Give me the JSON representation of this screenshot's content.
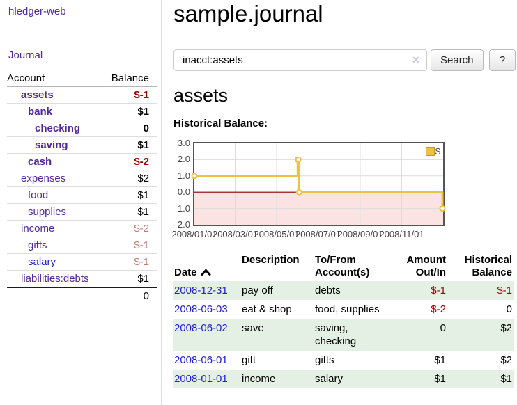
{
  "app": {
    "brand": "hledger-web",
    "nav_journal": "Journal"
  },
  "header": {
    "title": "sample.journal"
  },
  "search": {
    "value": "inacct:assets",
    "placeholder": "",
    "clear_icon": "✕",
    "button_label": "Search",
    "help_label": "?"
  },
  "sidebar": {
    "accounts_header": {
      "account": "Account",
      "balance": "Balance"
    },
    "accounts": [
      {
        "name": "assets",
        "level": 1,
        "bold": true,
        "blue": false,
        "balance": "$-1",
        "neg": "strong"
      },
      {
        "name": "bank",
        "level": 2,
        "bold": true,
        "blue": false,
        "balance": "$1",
        "neg": ""
      },
      {
        "name": "checking",
        "level": 3,
        "bold": true,
        "blue": false,
        "balance": "0",
        "neg": ""
      },
      {
        "name": "saving",
        "level": 3,
        "bold": true,
        "blue": false,
        "balance": "$1",
        "neg": ""
      },
      {
        "name": "cash",
        "level": 2,
        "bold": true,
        "blue": false,
        "balance": "$-2",
        "neg": "strong"
      },
      {
        "name": "expenses",
        "level": 1,
        "bold": false,
        "blue": false,
        "balance": "$2",
        "neg": ""
      },
      {
        "name": "food",
        "level": 2,
        "bold": false,
        "blue": false,
        "balance": "$1",
        "neg": ""
      },
      {
        "name": "supplies",
        "level": 2,
        "bold": false,
        "blue": false,
        "balance": "$1",
        "neg": ""
      },
      {
        "name": "income",
        "level": 1,
        "bold": false,
        "blue": false,
        "balance": "$-2",
        "neg": "soft"
      },
      {
        "name": "gifts",
        "level": 2,
        "bold": false,
        "blue": false,
        "balance": "$-1",
        "neg": "soft"
      },
      {
        "name": "salary",
        "level": 2,
        "bold": false,
        "blue": true,
        "balance": "$-1",
        "neg": "soft"
      },
      {
        "name": "liabilities:debts",
        "level": 1,
        "bold": false,
        "blue": false,
        "balance": "$1",
        "neg": ""
      }
    ],
    "total": "0"
  },
  "account_page": {
    "title": "assets",
    "chart_label": "Historical Balance:"
  },
  "chart_data": {
    "type": "line",
    "step": true,
    "title": "Historical Balance:",
    "series": [
      {
        "name": "$",
        "color": "#edc240",
        "points": [
          [
            "2008-01-01",
            1
          ],
          [
            "2008-06-01",
            2
          ],
          [
            "2008-06-02",
            2
          ],
          [
            "2008-06-03",
            0
          ],
          [
            "2008-12-31",
            -1
          ]
        ]
      }
    ],
    "x_range": [
      "2008-01-01",
      "2009-01-01"
    ],
    "ylim": [
      -2,
      3
    ],
    "x_ticks": [
      {
        "label": "2008/01/01",
        "date": "2008-01-01"
      },
      {
        "label": "2008/03/01",
        "date": "2008-03-01"
      },
      {
        "label": "2008/05/01",
        "date": "2008-05-01"
      },
      {
        "label": "2008/07/01",
        "date": "2008-07-01"
      },
      {
        "label": "2008/09/01",
        "date": "2008-09-01"
      },
      {
        "label": "2008/11/01",
        "date": "2008-11-01"
      }
    ],
    "y_ticks": [
      {
        "label": "3.0",
        "value": 3
      },
      {
        "label": "2.0",
        "value": 2
      },
      {
        "label": "1.0",
        "value": 1
      },
      {
        "label": "0.0",
        "value": 0
      },
      {
        "label": "-1.0",
        "value": -1
      },
      {
        "label": "-2.0",
        "value": -2
      }
    ],
    "legend": {
      "label": "$",
      "position": "top-right"
    },
    "grid": true,
    "zero_line_color": "#8b0000",
    "negative_region_color": "#fbe3e3"
  },
  "register": {
    "columns": [
      "Date",
      "Description",
      "To/From\nAccount(s)",
      "Amount\nOut/In",
      "Historical\nBalance"
    ],
    "sort": {
      "column": "Date",
      "direction": "asc"
    },
    "rows": [
      {
        "date": "2008-12-31",
        "description": "pay off",
        "accounts": "debts",
        "amount": "$-1",
        "amount_neg": true,
        "balance": "$-1",
        "balance_neg": true
      },
      {
        "date": "2008-06-03",
        "description": "eat & shop",
        "accounts": "food, supplies",
        "amount": "$-2",
        "amount_neg": true,
        "balance": "0",
        "balance_neg": false
      },
      {
        "date": "2008-06-02",
        "description": "save",
        "accounts": "saving,\nchecking",
        "amount": "0",
        "amount_neg": false,
        "balance": "$2",
        "balance_neg": false
      },
      {
        "date": "2008-06-01",
        "description": "gift",
        "accounts": "gifts",
        "amount": "$1",
        "amount_neg": false,
        "balance": "$2",
        "balance_neg": false
      },
      {
        "date": "2008-01-01",
        "description": "income",
        "accounts": "salary",
        "amount": "$1",
        "amount_neg": false,
        "balance": "$1",
        "balance_neg": false
      }
    ]
  },
  "colors": {
    "link_purple": "#50279d",
    "link_blue": "#2222cc",
    "negative_strong": "#a40000",
    "negative_soft": "#c07a7a",
    "row_stripe_green": "#e3f0e3",
    "chart_line_gold": "#edc240",
    "chart_negative_fill": "#fbe3e3",
    "chart_zero_line": "#8b0000",
    "chart_border": "#545454"
  }
}
